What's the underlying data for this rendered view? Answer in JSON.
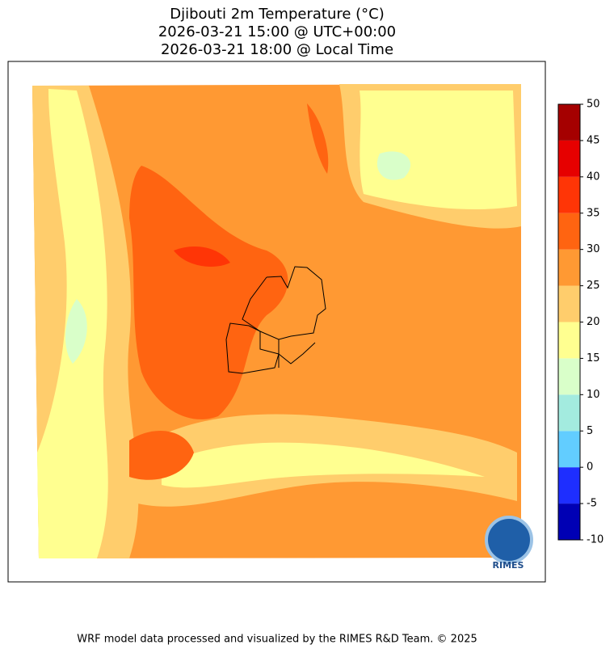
{
  "title": [
    "Djibouti 2m Temperature (°C)",
    "2026-03-21 15:00 @ UTC+00:00",
    "2026-03-21 18:00 @ Local Time"
  ],
  "colorbar": {
    "ticks": [
      -10,
      -5,
      0,
      5,
      10,
      15,
      20,
      25,
      30,
      35,
      40,
      45,
      50
    ],
    "colors": [
      "#0000b4",
      "#1e2eff",
      "#62cdff",
      "#a3ebdf",
      "#d9ffc9",
      "#ffff90",
      "#ffcd6c",
      "#ff9933",
      "#ff6411",
      "#ff3506",
      "#e60000",
      "#a50000"
    ]
  },
  "footer": "WRF model data processed and visualized by the RIMES R&D Team. © 2025",
  "logo": "RIMES"
}
